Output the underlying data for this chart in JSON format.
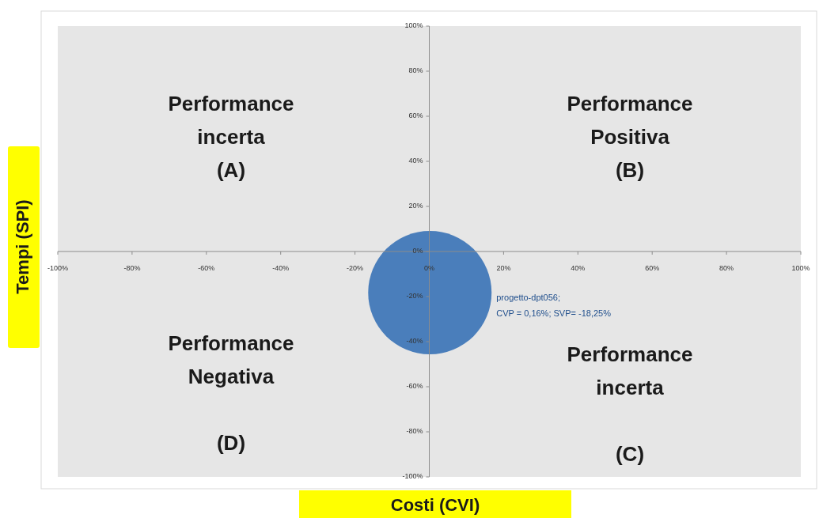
{
  "chart_data": {
    "type": "bubble",
    "xlabel": "Costi (CVI)",
    "ylabel": "Tempi (SPI)",
    "x": [
      0.16
    ],
    "values": [
      -18.25
    ],
    "sizes": [
      1
    ],
    "color": "#4a7ebb",
    "value_labels": [
      "progetto-dpt056;\nCVP = 0,16%; SVP= -18,25%"
    ],
    "xlim": [
      -100,
      100
    ],
    "ylim": [
      -100,
      100
    ],
    "xticks": [
      {
        "value": -100,
        "label": "-100%"
      },
      {
        "value": -80,
        "label": "-80%"
      },
      {
        "value": -60,
        "label": "-60%"
      },
      {
        "value": -40,
        "label": "-40%"
      },
      {
        "value": -20,
        "label": "-20%"
      },
      {
        "value": 0,
        "label": "0%"
      },
      {
        "value": 20,
        "label": "20%"
      },
      {
        "value": 40,
        "label": "40%"
      },
      {
        "value": 60,
        "label": "60%"
      },
      {
        "value": 80,
        "label": "80%"
      },
      {
        "value": 100,
        "label": "100%"
      }
    ],
    "yticks": [
      {
        "value": -100,
        "label": "-100%"
      },
      {
        "value": -80,
        "label": "-80%"
      },
      {
        "value": -60,
        "label": "-60%"
      },
      {
        "value": -40,
        "label": "-40%"
      },
      {
        "value": -20,
        "label": "-20%"
      },
      {
        "value": 0,
        "label": "0%"
      },
      {
        "value": 20,
        "label": "20%"
      },
      {
        "value": 40,
        "label": "40%"
      },
      {
        "value": 60,
        "label": "60%"
      },
      {
        "value": 80,
        "label": "80%"
      },
      {
        "value": 100,
        "label": "100%"
      }
    ],
    "annotations": [
      "Performance\nincerta\n(A)",
      "Performance\nPositiva\n(B)",
      "Performance\nNegativa\n\n(D)",
      "Performance\nincerta\n\n(C)"
    ],
    "grid": false,
    "legend": false
  }
}
